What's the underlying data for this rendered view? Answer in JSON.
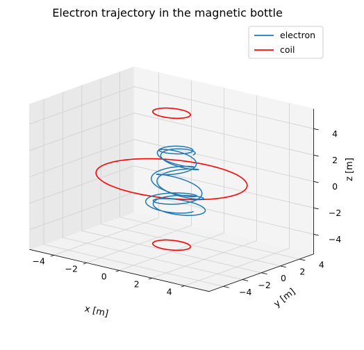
{
  "chart_data": {
    "type": "line",
    "title": "Electron trajectory in the magnetic bottle",
    "xlabel": "x [m]",
    "ylabel": "y [m]",
    "zlabel": "z [m]",
    "xlim": [
      -5,
      5
    ],
    "ylim": [
      -5,
      5
    ],
    "zlim": [
      -5,
      5
    ],
    "xticks": [
      "−4",
      "−2",
      "0",
      "2",
      "4"
    ],
    "yticks": [
      "−4",
      "−2",
      "0",
      "2",
      "4"
    ],
    "zticks": [
      "−4",
      "−2",
      "0",
      "2",
      "4"
    ],
    "grid": true,
    "legend_position": "top-right",
    "series": [
      {
        "name": "electron",
        "color": "#1f77b4"
      },
      {
        "name": "coil",
        "color": "#ff0000"
      }
    ],
    "coils": [
      {
        "center_z": -5,
        "radius": 1
      },
      {
        "center_z": 0,
        "radius": 4
      },
      {
        "center_z": 5,
        "radius": 1
      }
    ],
    "electron": {
      "gyro_radius": 0.9,
      "gyro_turns": 9,
      "guiding_center_radius": 0.4,
      "z_amplitude": 2.2,
      "bounces": 1.5
    }
  }
}
